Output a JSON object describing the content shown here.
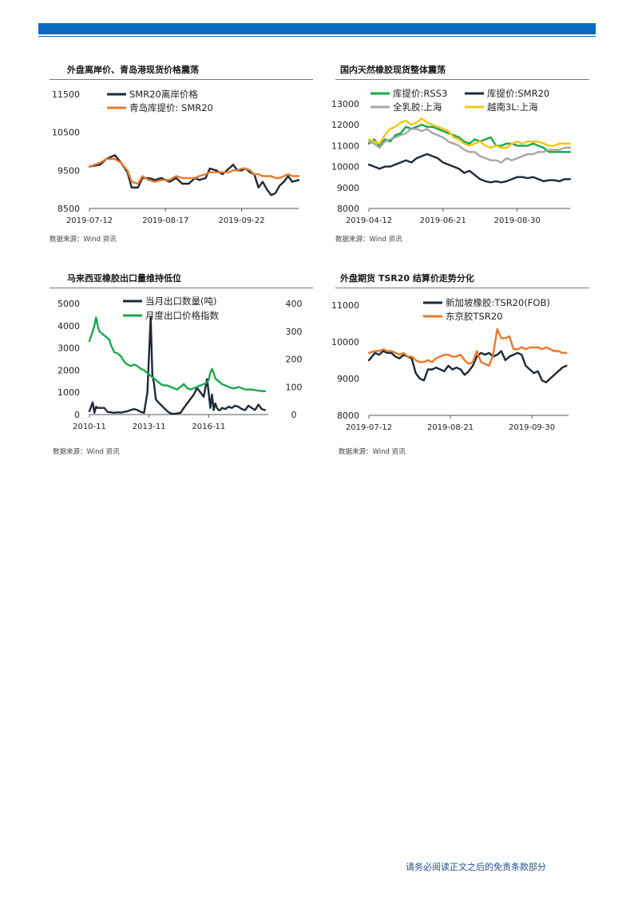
{
  "page": {
    "footer_text": "请务必阅读正文之后的免责条款部分",
    "accent_color": "#0b6bbf"
  },
  "panels": [
    {
      "title": "外盘离岸价、青岛港现货价格震荡",
      "source": "数据来源：Wind 资讯"
    },
    {
      "title": "国内天然橡胶现货整体震荡",
      "source": "数据来源：Wind 资讯"
    },
    {
      "title": "马来西亚橡胶出口量维持低位",
      "source": "数据来源：Wind 资讯"
    },
    {
      "title": "外盘期货 TSR20 结算价走势分化",
      "source": "数据来源：Wind 资讯"
    }
  ],
  "chart_data": [
    {
      "type": "line",
      "title": "外盘离岸价、青岛港现货价格震荡",
      "ylim": [
        8500,
        11500
      ],
      "yticks": [
        8500,
        9500,
        10500,
        11500
      ],
      "xticks": [
        {
          "t": 0,
          "label": "2019-07-12"
        },
        {
          "t": 36,
          "label": "2019-08-17"
        },
        {
          "t": 72,
          "label": "2019-09-22"
        }
      ],
      "xlim": [
        0,
        99
      ],
      "legend": "top-left",
      "series": [
        {
          "name": "SMR20离岸价格",
          "color": "#1f2937",
          "x": [
            0,
            5,
            8,
            12,
            15,
            18,
            20,
            23,
            25,
            28,
            31,
            34,
            36,
            38,
            41,
            44,
            47,
            50,
            52,
            55,
            57,
            60,
            63,
            66,
            68,
            70,
            72,
            74,
            76,
            78,
            80,
            82,
            84,
            86,
            88,
            90,
            92,
            94,
            96,
            99
          ],
          "y": [
            9600,
            9650,
            9800,
            9900,
            9700,
            9450,
            9050,
            9050,
            9300,
            9300,
            9250,
            9300,
            9250,
            9200,
            9300,
            9150,
            9150,
            9300,
            9250,
            9300,
            9550,
            9500,
            9400,
            9550,
            9650,
            9500,
            9500,
            9550,
            9450,
            9400,
            9050,
            9200,
            9000,
            8850,
            8900,
            9100,
            9200,
            9350,
            9200,
            9250
          ]
        },
        {
          "name": "青岛库提价: SMR20",
          "color": "#e8792c",
          "x": [
            0,
            5,
            8,
            12,
            15,
            18,
            20,
            23,
            25,
            28,
            31,
            34,
            36,
            38,
            41,
            44,
            47,
            50,
            52,
            55,
            57,
            60,
            63,
            66,
            68,
            70,
            72,
            74,
            76,
            78,
            80,
            82,
            84,
            86,
            88,
            90,
            92,
            94,
            96,
            99
          ],
          "y": [
            9600,
            9700,
            9800,
            9800,
            9700,
            9500,
            9200,
            9150,
            9350,
            9250,
            9200,
            9250,
            9250,
            9250,
            9350,
            9300,
            9300,
            9300,
            9350,
            9400,
            9450,
            9450,
            9450,
            9450,
            9500,
            9500,
            9550,
            9550,
            9500,
            9400,
            9400,
            9350,
            9350,
            9350,
            9300,
            9300,
            9350,
            9400,
            9350,
            9350
          ]
        }
      ]
    },
    {
      "type": "line",
      "title": "国内天然橡胶现货整体震荡",
      "ylim": [
        8000,
        13000
      ],
      "yticks": [
        8000,
        9000,
        10000,
        11000,
        12000,
        13000
      ],
      "xticks": [
        {
          "t": 0,
          "label": "2019-04-12"
        },
        {
          "t": 70,
          "label": "2019-06-21"
        },
        {
          "t": 140,
          "label": "2019-08-30"
        }
      ],
      "xlim": [
        0,
        190
      ],
      "legend": "top-left",
      "series": [
        {
          "name": "库提价:RSS3",
          "color": "#1aa84a",
          "x": [
            0,
            5,
            10,
            15,
            20,
            25,
            30,
            35,
            40,
            45,
            50,
            55,
            60,
            65,
            70,
            75,
            80,
            85,
            90,
            95,
            100,
            105,
            110,
            115,
            120,
            125,
            130,
            135,
            140,
            145,
            150,
            155,
            160,
            165,
            170,
            175,
            180,
            185,
            190
          ],
          "y": [
            11100,
            11300,
            11000,
            11300,
            11200,
            11500,
            11600,
            11900,
            11800,
            11900,
            12000,
            11900,
            11900,
            11800,
            11700,
            11600,
            11500,
            11400,
            11200,
            11100,
            11300,
            11200,
            11300,
            11400,
            11000,
            11000,
            11100,
            11100,
            11000,
            11000,
            11000,
            11100,
            11000,
            10900,
            10700,
            10700,
            10700,
            10700,
            10700
          ]
        },
        {
          "name": "库提价:SMR20",
          "color": "#1f2937",
          "x": [
            0,
            5,
            10,
            15,
            20,
            25,
            30,
            35,
            40,
            45,
            50,
            55,
            60,
            65,
            70,
            75,
            80,
            85,
            90,
            95,
            100,
            105,
            110,
            115,
            120,
            125,
            130,
            135,
            140,
            145,
            150,
            155,
            160,
            165,
            170,
            175,
            180,
            185,
            190
          ],
          "y": [
            10100,
            10000,
            9900,
            10000,
            10000,
            10100,
            10200,
            10300,
            10200,
            10400,
            10500,
            10600,
            10500,
            10400,
            10200,
            10100,
            10000,
            9900,
            9700,
            9800,
            9600,
            9400,
            9300,
            9250,
            9300,
            9250,
            9300,
            9400,
            9500,
            9500,
            9450,
            9500,
            9400,
            9300,
            9350,
            9350,
            9300,
            9400,
            9400
          ]
        },
        {
          "name": "全乳胶:上海",
          "color": "#a6a6a6",
          "x": [
            0,
            5,
            10,
            15,
            20,
            25,
            30,
            35,
            40,
            45,
            50,
            55,
            60,
            65,
            70,
            75,
            80,
            85,
            90,
            95,
            100,
            105,
            110,
            115,
            120,
            125,
            130,
            135,
            140,
            145,
            150,
            155,
            160,
            165,
            170,
            175,
            180,
            185,
            190
          ],
          "y": [
            11200,
            11100,
            10900,
            11200,
            11300,
            11400,
            11500,
            11600,
            11800,
            11800,
            11700,
            11800,
            11600,
            11500,
            11400,
            11200,
            11100,
            11000,
            10800,
            10700,
            10700,
            10500,
            10400,
            10300,
            10300,
            10200,
            10400,
            10300,
            10400,
            10500,
            10600,
            10600,
            10700,
            10700,
            10800,
            10800,
            10800,
            10900,
            10900
          ]
        },
        {
          "name": "越南3L:上海",
          "color": "#f5c518",
          "x": [
            0,
            5,
            10,
            15,
            20,
            25,
            30,
            35,
            40,
            45,
            50,
            55,
            60,
            65,
            70,
            75,
            80,
            85,
            90,
            95,
            100,
            105,
            110,
            115,
            120,
            125,
            130,
            135,
            140,
            145,
            150,
            155,
            160,
            165,
            170,
            175,
            180,
            185,
            190
          ],
          "y": [
            11300,
            11200,
            11100,
            11500,
            11800,
            11900,
            12100,
            12200,
            12000,
            12100,
            12300,
            12100,
            12000,
            11900,
            11800,
            11700,
            11400,
            11300,
            11100,
            11000,
            11100,
            11200,
            11000,
            10900,
            11000,
            10900,
            10900,
            11100,
            11200,
            11100,
            11200,
            11200,
            11200,
            11100,
            11000,
            11000,
            11100,
            11100,
            11100
          ]
        }
      ]
    },
    {
      "type": "line",
      "title": "马来西亚橡胶出口量维持低位",
      "ylim": [
        0,
        5000
      ],
      "yticks": [
        0,
        1000,
        2000,
        3000,
        4000,
        5000
      ],
      "y2lim": [
        0,
        400
      ],
      "y2ticks": [
        0,
        100,
        200,
        300,
        400
      ],
      "xticks": [
        {
          "t": 0,
          "label": "2010-11"
        },
        {
          "t": 36,
          "label": "2013-11"
        },
        {
          "t": 72,
          "label": "2016-11"
        }
      ],
      "xlim": [
        0,
        108
      ],
      "legend": "top-center",
      "series": [
        {
          "name": "当月出口数量(吨)",
          "color": "#1f2937",
          "axis": "left",
          "x": [
            0,
            2,
            3,
            4,
            5,
            7,
            9,
            11,
            13,
            15,
            17,
            19,
            21,
            23,
            25,
            27,
            29,
            31,
            33,
            35,
            37,
            38,
            39,
            40,
            41,
            43,
            45,
            47,
            49,
            51,
            53,
            55,
            57,
            59,
            61,
            63,
            65,
            67,
            69,
            71,
            72,
            73,
            74,
            75,
            76,
            77,
            78,
            79,
            80,
            82,
            84,
            86,
            88,
            90,
            92,
            94,
            96,
            98,
            100,
            102,
            104,
            106
          ],
          "y": [
            150,
            550,
            80,
            350,
            300,
            300,
            300,
            120,
            100,
            80,
            100,
            90,
            120,
            150,
            200,
            250,
            200,
            120,
            80,
            1000,
            4400,
            1800,
            1400,
            700,
            600,
            450,
            300,
            150,
            50,
            30,
            50,
            80,
            300,
            500,
            700,
            900,
            1200,
            1000,
            800,
            1600,
            1000,
            300,
            900,
            200,
            500,
            300,
            200,
            200,
            300,
            250,
            350,
            300,
            400,
            350,
            250,
            200,
            400,
            300,
            200,
            450,
            250,
            200
          ]
        },
        {
          "name": "月度出口价格指数",
          "color": "#1aa84a",
          "axis": "right",
          "x": [
            0,
            2,
            3,
            4,
            5,
            6,
            7,
            8,
            10,
            12,
            13,
            15,
            17,
            19,
            21,
            23,
            25,
            27,
            29,
            31,
            33,
            35,
            37,
            39,
            41,
            43,
            45,
            47,
            49,
            51,
            53,
            55,
            57,
            59,
            61,
            63,
            65,
            67,
            69,
            71,
            72,
            73,
            74,
            75,
            76,
            78,
            80,
            82,
            84,
            86,
            88,
            90,
            92,
            94,
            96,
            98,
            100,
            102,
            104,
            106
          ],
          "y": [
            265,
            300,
            320,
            350,
            320,
            300,
            295,
            290,
            280,
            270,
            250,
            225,
            220,
            210,
            190,
            180,
            175,
            180,
            175,
            165,
            160,
            150,
            140,
            130,
            120,
            110,
            105,
            105,
            100,
            95,
            90,
            100,
            110,
            95,
            90,
            95,
            100,
            105,
            110,
            115,
            125,
            150,
            165,
            150,
            130,
            120,
            110,
            105,
            100,
            95,
            95,
            100,
            95,
            90,
            90,
            90,
            88,
            86,
            85,
            84
          ]
        }
      ]
    },
    {
      "type": "line",
      "title": "外盘期货 TSR20 结算价走势分化",
      "ylim": [
        8000,
        11000
      ],
      "yticks": [
        8000,
        9000,
        10000,
        11000
      ],
      "xticks": [
        {
          "t": 0,
          "label": "2019-07-12"
        },
        {
          "t": 40,
          "label": "2019-08-21"
        },
        {
          "t": 80,
          "label": "2019-09-30"
        }
      ],
      "xlim": [
        0,
        98
      ],
      "legend": "top-center",
      "series": [
        {
          "name": "新加坡橡胶:TSR20(FOB)",
          "color": "#1f2937",
          "x": [
            0,
            3,
            5,
            7,
            9,
            11,
            13,
            15,
            17,
            19,
            21,
            23,
            25,
            27,
            29,
            31,
            33,
            35,
            37,
            39,
            41,
            43,
            45,
            47,
            49,
            51,
            53,
            55,
            57,
            59,
            61,
            63,
            65,
            67,
            69,
            71,
            73,
            75,
            77,
            79,
            81,
            83,
            85,
            87,
            89,
            91,
            93,
            95,
            97
          ],
          "y": [
            9500,
            9700,
            9650,
            9750,
            9700,
            9700,
            9600,
            9550,
            9650,
            9600,
            9550,
            9150,
            9000,
            8950,
            9250,
            9250,
            9300,
            9250,
            9200,
            9350,
            9250,
            9300,
            9250,
            9100,
            9200,
            9350,
            9600,
            9700,
            9650,
            9700,
            9600,
            9650,
            9750,
            9500,
            9600,
            9650,
            9700,
            9650,
            9350,
            9250,
            9150,
            9200,
            8950,
            8900,
            9000,
            9100,
            9200,
            9300,
            9350
          ]
        },
        {
          "name": "东京胶TSR20",
          "color": "#e8792c",
          "x": [
            0,
            3,
            5,
            7,
            9,
            11,
            13,
            15,
            17,
            19,
            21,
            23,
            25,
            27,
            29,
            31,
            33,
            35,
            37,
            39,
            41,
            43,
            45,
            47,
            49,
            51,
            53,
            55,
            57,
            59,
            61,
            63,
            65,
            67,
            69,
            71,
            73,
            75,
            77,
            79,
            81,
            83,
            85,
            87,
            89,
            91,
            93,
            95,
            97
          ],
          "y": [
            9700,
            9750,
            9750,
            9800,
            9750,
            9750,
            9700,
            9650,
            9700,
            9600,
            9600,
            9500,
            9450,
            9450,
            9500,
            9450,
            9550,
            9600,
            9650,
            9650,
            9600,
            9600,
            9650,
            9500,
            9400,
            9450,
            9750,
            9450,
            9400,
            9350,
            9650,
            10350,
            10100,
            10100,
            10150,
            9800,
            9800,
            9850,
            9800,
            9850,
            9850,
            9850,
            9800,
            9850,
            9800,
            9750,
            9750,
            9700,
            9700
          ]
        }
      ]
    }
  ]
}
